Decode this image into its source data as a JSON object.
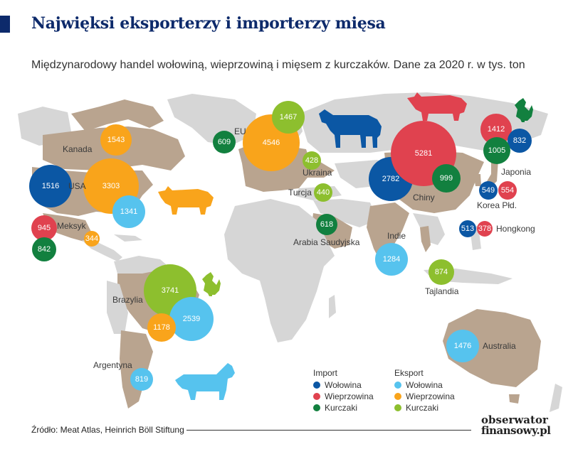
{
  "title": "Najwięksi eksporterzy i importerzy mięsa",
  "subtitle": "Międzynarodowy handel wołowiną, wieprzowiną i mięsem z kurczaków. Dane za 2020 r. w tys. ton",
  "colors": {
    "import_beef": "#0b57a4",
    "import_pork": "#e0424f",
    "import_chicken": "#12803f",
    "export_beef": "#56c3ee",
    "export_pork": "#f9a41b",
    "export_chicken": "#8dbf2e",
    "land_highlight": "#b9a48f",
    "land": "#d6d6d6"
  },
  "countries": [
    {
      "name": "Kanada"
    },
    {
      "name": "USA"
    },
    {
      "name": "Meksyk"
    },
    {
      "name": "Brazylia"
    },
    {
      "name": "Argentyna"
    },
    {
      "name": "EU"
    },
    {
      "name": "Ukraina"
    },
    {
      "name": "Turcja"
    },
    {
      "name": "Arabia Saudyjska"
    },
    {
      "name": "Indie"
    },
    {
      "name": "Chiny"
    },
    {
      "name": "Japonia"
    },
    {
      "name": "Korea Płd."
    },
    {
      "name": "Hongkong"
    },
    {
      "name": "Tajlandia"
    },
    {
      "name": "Australia"
    }
  ],
  "bubbles": [
    {
      "country": "Kanada",
      "flow": "export",
      "meat": "pork",
      "value": 1543
    },
    {
      "country": "USA",
      "flow": "import",
      "meat": "beef",
      "value": 1516
    },
    {
      "country": "USA",
      "flow": "export",
      "meat": "pork",
      "value": 3303
    },
    {
      "country": "USA",
      "flow": "export",
      "meat": "beef",
      "value": 1341
    },
    {
      "country": "Meksyk",
      "flow": "import",
      "meat": "pork",
      "value": 945
    },
    {
      "country": "Meksyk",
      "flow": "import",
      "meat": "chicken",
      "value": 842
    },
    {
      "country": "Meksyk",
      "flow": "export",
      "meat": "pork",
      "value": 344
    },
    {
      "country": "Brazylia",
      "flow": "export",
      "meat": "chicken",
      "value": 3741
    },
    {
      "country": "Brazylia",
      "flow": "export",
      "meat": "beef",
      "value": 2539
    },
    {
      "country": "Brazylia",
      "flow": "export",
      "meat": "pork",
      "value": 1178
    },
    {
      "country": "Argentyna",
      "flow": "export",
      "meat": "beef",
      "value": 819
    },
    {
      "country": "EU",
      "flow": "import",
      "meat": "chicken",
      "value": 609
    },
    {
      "country": "EU",
      "flow": "export",
      "meat": "pork",
      "value": 4546
    },
    {
      "country": "EU",
      "flow": "export",
      "meat": "chicken",
      "value": 1467
    },
    {
      "country": "Ukraina",
      "flow": "export",
      "meat": "chicken",
      "value": 428
    },
    {
      "country": "Turcja",
      "flow": "export",
      "meat": "chicken",
      "value": 440
    },
    {
      "country": "Arabia Saudyjska",
      "flow": "import",
      "meat": "chicken",
      "value": 618
    },
    {
      "country": "Indie",
      "flow": "export",
      "meat": "beef",
      "value": 1284
    },
    {
      "country": "Chiny",
      "flow": "import",
      "meat": "beef",
      "value": 2782
    },
    {
      "country": "Chiny",
      "flow": "import",
      "meat": "pork",
      "value": 5281
    },
    {
      "country": "Chiny",
      "flow": "import",
      "meat": "chicken",
      "value": 999
    },
    {
      "country": "Japonia",
      "flow": "import",
      "meat": "pork",
      "value": 1412
    },
    {
      "country": "Japonia",
      "flow": "import",
      "meat": "beef",
      "value": 832
    },
    {
      "country": "Japonia",
      "flow": "import",
      "meat": "chicken",
      "value": 1005
    },
    {
      "country": "Korea Płd.",
      "flow": "import",
      "meat": "beef",
      "value": 549
    },
    {
      "country": "Korea Płd.",
      "flow": "import",
      "meat": "pork",
      "value": 554
    },
    {
      "country": "Hongkong",
      "flow": "import",
      "meat": "beef",
      "value": 513
    },
    {
      "country": "Hongkong",
      "flow": "import",
      "meat": "pork",
      "value": 378
    },
    {
      "country": "Tajlandia",
      "flow": "export",
      "meat": "chicken",
      "value": 874
    },
    {
      "country": "Australia",
      "flow": "export",
      "meat": "beef",
      "value": 1476
    }
  ],
  "legend": {
    "import_header": "Import",
    "export_header": "Eksport",
    "import_items": [
      "Wołowina",
      "Wieprzowina",
      "Kurczaki"
    ],
    "export_items": [
      "Wołowina",
      "Wieprzowina",
      "Kurczaki"
    ]
  },
  "source": "Źródło: Meat Atlas, Heinrich Böll Stiftung",
  "logo": {
    "line1": "obserwator",
    "line2": "finansowy.pl"
  },
  "icons": [
    "cow-icon",
    "pig-icon",
    "chicken-icon"
  ]
}
